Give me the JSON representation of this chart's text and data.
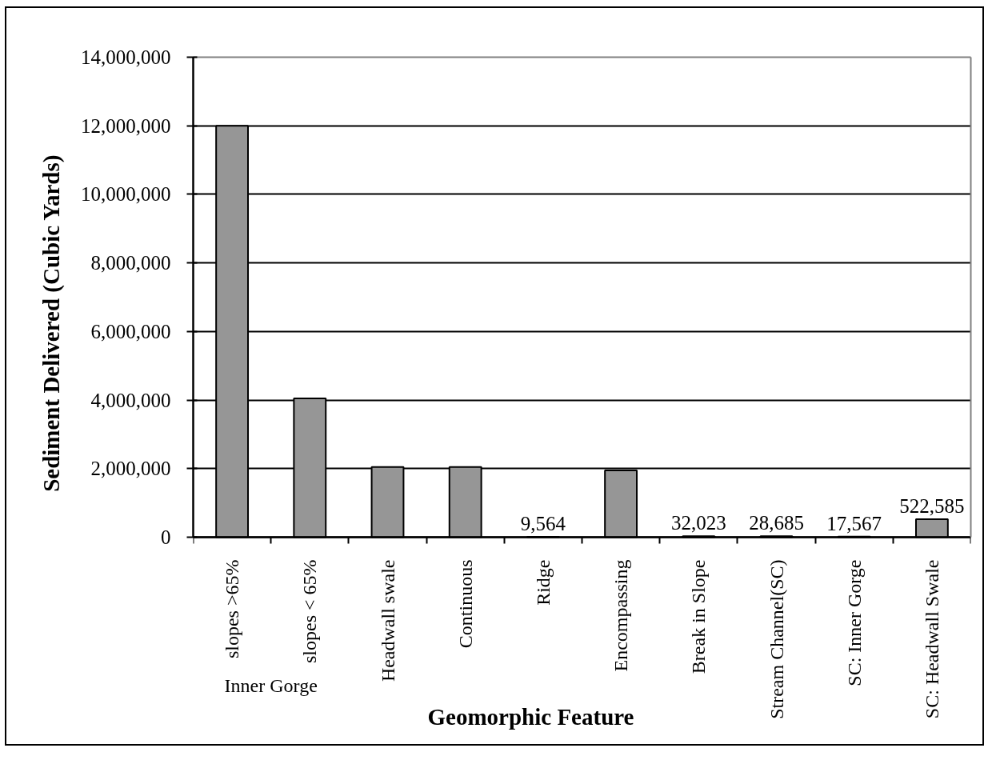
{
  "chart_data": {
    "type": "bar",
    "xlabel": "Geomorphic Feature",
    "ylabel": "Sediment Delivered (Cubic Yards)",
    "categories": [
      "slopes >65%",
      "slopes < 65%",
      "Headwall swale",
      "Continuous",
      "Ridge",
      "Encompassing",
      "Break in Slope",
      "Stream Channel(SC)",
      "SC: Inner Gorge",
      "SC: Headwall Swale"
    ],
    "values": [
      12000000,
      4050000,
      2050000,
      2050000,
      9564,
      1950000,
      32023,
      28685,
      17567,
      522585
    ],
    "value_labels": [
      null,
      null,
      null,
      null,
      "9,564",
      null,
      "32,023",
      "28,685",
      "17,567",
      "522,585"
    ],
    "color": "#969696",
    "ylim": [
      0,
      14000000
    ],
    "yticks": [
      {
        "value": 0,
        "label": "0"
      },
      {
        "value": 2000000,
        "label": "2,000,000"
      },
      {
        "value": 4000000,
        "label": "4,000,000"
      },
      {
        "value": 6000000,
        "label": "6,000,000"
      },
      {
        "value": 8000000,
        "label": "8,000,000"
      },
      {
        "value": 10000000,
        "label": "10,000,000"
      },
      {
        "value": 12000000,
        "label": "12,000,000"
      },
      {
        "value": 14000000,
        "label": "14,000,000"
      }
    ],
    "grid": "y",
    "annotations": [
      "Inner Gorge"
    ]
  }
}
